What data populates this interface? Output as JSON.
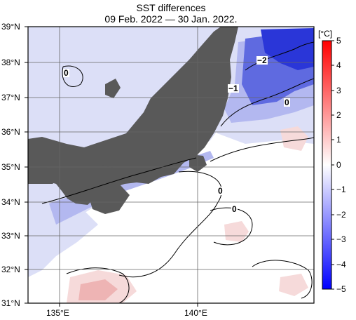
{
  "title": "SST differences",
  "subtitle": "09 Feb. 2022 — 30 Jan. 2022.",
  "colorbar": {
    "unit": "[°C]",
    "ticks": [
      "5",
      "4",
      "3",
      "2",
      "1",
      "0",
      "−1",
      "−2",
      "−3",
      "−4",
      "−5"
    ]
  },
  "lat_ticks": [
    "39°N",
    "38°N",
    "37°N",
    "36°N",
    "35°N",
    "34°N",
    "33°N",
    "32°N",
    "31°N"
  ],
  "lon_ticks": [
    "135°E",
    "140°E"
  ],
  "contour_labels": [
    "−2",
    "−1",
    "0",
    "0",
    "0",
    "0"
  ],
  "colors": {
    "land": "#595959",
    "sea_zero": "#ffffff",
    "neg_light": "#dcdff7",
    "neg_mid": "#b3b8f0",
    "neg_strong": "#5f6ae0",
    "neg_deep": "#2a36d8",
    "pos_light": "#f6dada",
    "pos_mid": "#eeb4b4"
  }
}
